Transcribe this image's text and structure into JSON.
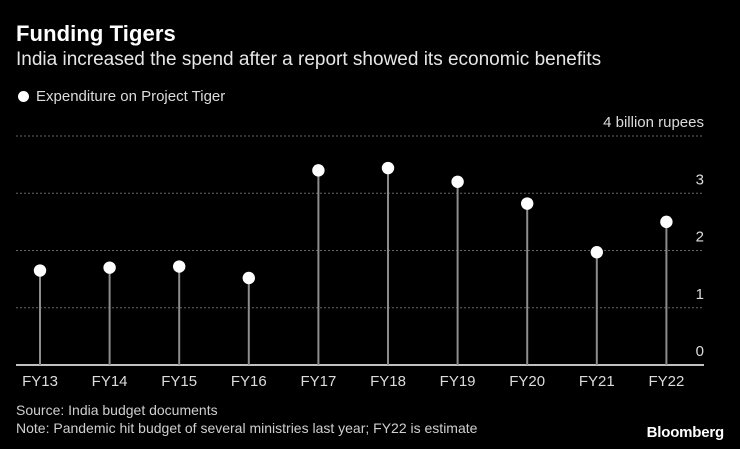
{
  "header": {
    "title": "Funding Tigers",
    "subtitle": "India increased the spend after a report showed its economic benefits"
  },
  "legend": {
    "label": "Expenditure on Project Tiger"
  },
  "footer": {
    "source": "Source: India budget documents",
    "note": "Note: Pandemic hit budget of several ministries last year; FY22 is estimate",
    "brand": "Bloomberg"
  },
  "chart_data": {
    "type": "lollipop",
    "title": "Funding Tigers",
    "subtitle": "India increased the spend after a report showed its economic benefits",
    "categories": [
      "FY13",
      "FY14",
      "FY15",
      "FY16",
      "FY17",
      "FY18",
      "FY19",
      "FY20",
      "FY21",
      "FY22"
    ],
    "series": [
      {
        "name": "Expenditure on Project Tiger",
        "values": [
          1.65,
          1.7,
          1.72,
          1.52,
          3.4,
          3.44,
          3.2,
          2.82,
          1.97,
          2.5
        ]
      }
    ],
    "ylabel": "billion rupees",
    "ylim": [
      0,
      4
    ],
    "yticks": [
      {
        "value": 0,
        "label": "0"
      },
      {
        "value": 1,
        "label": "1"
      },
      {
        "value": 2,
        "label": "2"
      },
      {
        "value": 3,
        "label": "3"
      },
      {
        "value": 4,
        "label": "4 billion rupees"
      }
    ],
    "grid": true,
    "colors": {
      "marker": "#ffffff",
      "stem": "#8c8c8c",
      "grid": "#666666",
      "baseline": "#ffffff"
    }
  }
}
